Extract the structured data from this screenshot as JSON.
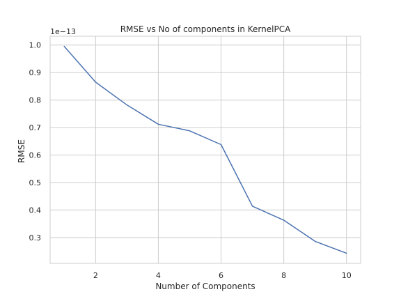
{
  "chart_data": {
    "type": "line",
    "title": "RMSE vs No of components in KernelPCA",
    "xlabel": "Number of Components",
    "ylabel": "RMSE",
    "y_offset_label": "1e−13",
    "x": [
      1,
      2,
      3,
      4,
      5,
      6,
      7,
      8,
      9,
      10
    ],
    "series": [
      {
        "values": [
          0.995,
          0.865,
          0.782,
          0.712,
          0.688,
          0.638,
          0.414,
          0.363,
          0.286,
          0.243
        ],
        "color": "#4c72b0"
      }
    ],
    "xlim": [
      0.55,
      10.45
    ],
    "ylim": [
      0.206,
      1.032
    ],
    "x_ticks": [
      2,
      4,
      6,
      8,
      10
    ],
    "x_tick_labels": [
      "2",
      "4",
      "6",
      "8",
      "10"
    ],
    "y_ticks": [
      0.3,
      0.4,
      0.5,
      0.6,
      0.7,
      0.8,
      0.9,
      1.0
    ],
    "y_tick_labels": [
      "0.3",
      "0.4",
      "0.5",
      "0.6",
      "0.7",
      "0.8",
      "0.9",
      "1.0"
    ],
    "grid": true,
    "style": "whitegrid"
  }
}
